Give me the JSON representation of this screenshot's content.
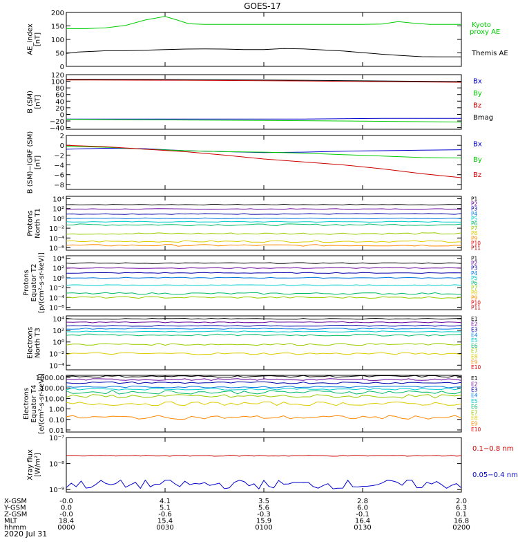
{
  "title": "GOES-17",
  "date": "2020 Jul 31",
  "colors": {
    "axis": "#000000",
    "green": "#00cc00",
    "black": "#000000",
    "blue": "#0000cc",
    "red": "#cc0000"
  },
  "ephemeris": {
    "labels": [
      "X-GSM",
      "Y-GSM",
      "Z-GSM",
      "MLT",
      "hhmm"
    ],
    "columns": [
      [
        "-0.0",
        "0.0",
        "-0.0",
        "18.4",
        "0000"
      ],
      [
        "4.1",
        "5.1",
        "-0.6",
        "15.4",
        "0030"
      ],
      [
        "3.5",
        "5.6",
        "-0.3",
        "15.9",
        "0100"
      ],
      [
        "2.8",
        "6.0",
        "-0.1",
        "16.4",
        "0130"
      ],
      [
        "2.0",
        "6.3",
        "0.1",
        "16.8",
        "0200"
      ]
    ]
  },
  "chart_data": [
    {
      "type": "line",
      "ylabel": [
        "AE_index",
        "[nT]"
      ],
      "yticks": [
        "200",
        "150",
        "100",
        "50",
        "0"
      ],
      "ylim": [
        0,
        200
      ],
      "legend": [
        "Kyoto",
        "proxy AE",
        "Themis AE"
      ],
      "series": [
        {
          "name": "Kyoto proxy AE",
          "color": "green",
          "x": [
            0,
            0.05,
            0.1,
            0.15,
            0.2,
            0.25,
            0.28,
            0.31,
            0.35,
            0.45,
            0.6,
            0.75,
            0.8,
            0.84,
            0.88,
            0.92,
            1.0
          ],
          "values": [
            140,
            140,
            143,
            152,
            172,
            185,
            172,
            158,
            156,
            156,
            156,
            156,
            157,
            166,
            160,
            156,
            156
          ]
        },
        {
          "name": "Themis AE",
          "color": "black",
          "x": [
            0,
            0.03,
            0.07,
            0.1,
            0.15,
            0.2,
            0.25,
            0.3,
            0.35,
            0.4,
            0.45,
            0.5,
            0.55,
            0.6,
            0.65,
            0.7,
            0.75,
            0.8,
            0.85,
            0.9,
            0.95,
            1.0
          ],
          "values": [
            48,
            53,
            56,
            58,
            58,
            60,
            62,
            64,
            65,
            64,
            62,
            62,
            66,
            65,
            61,
            57,
            51,
            45,
            40,
            36,
            35,
            35
          ]
        }
      ]
    },
    {
      "type": "line",
      "ylabel": [
        "B (SM)",
        "[nT]"
      ],
      "yticks": [
        "120",
        "100",
        "80",
        "60",
        "40",
        "20",
        "0",
        "−20",
        "−40"
      ],
      "ylim": [
        -45,
        120
      ],
      "legend": [
        "Bx",
        "By",
        "Bz",
        "Bmag"
      ],
      "series": [
        {
          "name": "Bx",
          "color": "blue",
          "x": [
            0,
            0.3,
            0.6,
            0.8,
            1.0
          ],
          "values": [
            -14,
            -14,
            -14,
            -12,
            -12
          ]
        },
        {
          "name": "By",
          "color": "green",
          "x": [
            0,
            0.3,
            0.6,
            0.8,
            1.0
          ],
          "values": [
            -15,
            -17,
            -19,
            -21,
            -23
          ]
        },
        {
          "name": "Bz",
          "color": "red",
          "x": [
            0,
            0.3,
            0.6,
            0.8,
            1.0
          ],
          "values": [
            104,
            103,
            101,
            99,
            97
          ]
        },
        {
          "name": "Bmag",
          "color": "black",
          "x": [
            0,
            0.3,
            0.6,
            0.8,
            1.0
          ],
          "values": [
            106,
            105,
            103,
            101,
            99
          ]
        }
      ]
    },
    {
      "type": "line",
      "ylabel": [
        "B (SM)−IGRF (SM)",
        "[nT]"
      ],
      "yticks": [
        "2",
        "0",
        "−2",
        "−4",
        "−6",
        "−8"
      ],
      "ylim": [
        -9,
        2
      ],
      "legend": [
        "Bx",
        "By",
        "Bz"
      ],
      "series": [
        {
          "name": "Bx",
          "color": "blue",
          "x": [
            0,
            0.1,
            0.2,
            0.3,
            0.4,
            0.5,
            0.6,
            0.7,
            0.8,
            0.9,
            1.0
          ],
          "values": [
            -0.8,
            -0.6,
            -0.7,
            -1.1,
            -1.3,
            -1.5,
            -1.4,
            -1.2,
            -1.1,
            -1.0,
            -0.9
          ]
        },
        {
          "name": "By",
          "color": "green",
          "x": [
            0,
            0.1,
            0.2,
            0.3,
            0.4,
            0.5,
            0.6,
            0.7,
            0.8,
            0.9,
            1.0
          ],
          "values": [
            -0.2,
            -0.4,
            -0.8,
            -1.1,
            -1.3,
            -1.4,
            -1.6,
            -1.9,
            -2.2,
            -2.5,
            -2.6
          ]
        },
        {
          "name": "Bz",
          "color": "red",
          "x": [
            0,
            0.1,
            0.2,
            0.3,
            0.4,
            0.5,
            0.6,
            0.7,
            0.8,
            0.9,
            1.0
          ],
          "values": [
            0.0,
            -0.3,
            -0.8,
            -1.3,
            -2.0,
            -2.8,
            -3.4,
            -4.0,
            -4.8,
            -5.8,
            -6.6
          ]
        }
      ]
    },
    {
      "type": "line",
      "scale": "log",
      "ylabel": [
        "Protons",
        "North T1"
      ],
      "yticks": [
        "10⁴",
        "10²",
        "10⁰",
        "10⁻²",
        "10⁻⁴",
        "10⁻⁶"
      ],
      "ylim": [
        -6.5,
        4.5
      ],
      "legend": [
        "P1",
        "P2",
        "P3",
        "P4",
        "P5",
        "P6",
        "P7",
        "P8",
        "P9",
        "P10",
        "P11"
      ],
      "channels": [
        2.8,
        1.9,
        0.9,
        0.0,
        -0.7,
        -1.3,
        -3.1,
        -4.7,
        -5.5
      ]
    },
    {
      "type": "line",
      "scale": "log",
      "ylabel": [
        "Protons",
        "Equator T2",
        "[p/(cm²-s-sr-keV)]"
      ],
      "yticks": [
        "10⁴",
        "10²",
        "10⁰",
        "10⁻²",
        "10⁻⁴",
        "10⁻⁶"
      ],
      "ylim": [
        -6.5,
        4.5
      ],
      "legend": [
        "P1",
        "P2",
        "P3",
        "P4",
        "P5",
        "P6",
        "P7",
        "P8",
        "P9",
        "P10",
        "P11"
      ],
      "channels": [
        3.0,
        2.0,
        1.0,
        0.0,
        -1.5,
        -3.2,
        -4.0
      ]
    },
    {
      "type": "line",
      "scale": "log",
      "ylabel": [
        "Electrons",
        "North T3"
      ],
      "yticks": [
        "10⁴",
        "10²",
        "10⁰",
        "10⁻²",
        "10⁻⁴"
      ],
      "ylim": [
        -4.8,
        4.5
      ],
      "legend": [
        "E1",
        "E2",
        "E3",
        "E4",
        "E5",
        "E6",
        "E7",
        "E8",
        "E9",
        "E10"
      ],
      "channels": [
        4.0,
        3.4,
        2.8,
        2.3,
        1.8,
        1.2,
        -0.4,
        -2.0
      ]
    },
    {
      "type": "line",
      "scale": "log",
      "ylabel": [
        "Electrons",
        "Equator T4",
        "[e/(cm²-s-sr-keV)]"
      ],
      "yticks": [
        "1000.00",
        "100.00",
        "10.00",
        "1.00",
        "0.10",
        "0.01"
      ],
      "ylim": [
        -2.2,
        3.2
      ],
      "legend": [
        "E1",
        "E2",
        "E3",
        "E4",
        "E5",
        "E6",
        "E7",
        "E8",
        "E9",
        "E10"
      ],
      "channels": [
        3.1,
        2.8,
        2.5,
        2.1,
        1.9,
        1.6,
        1.2,
        0.5,
        -0.8
      ]
    },
    {
      "type": "line",
      "scale": "log",
      "ylabel": [
        "Xray flux",
        "[W/m²]"
      ],
      "yticks": [
        "10⁻⁷",
        "10⁻⁸",
        "10⁻⁹"
      ],
      "ylim": [
        -9.1,
        -7.0
      ],
      "legend": [
        "0.1−0.8 nm",
        "0.05−0.4 nm"
      ],
      "series": [
        {
          "name": "0.1−0.8 nm",
          "color": "red",
          "x": [
            0,
            1.0
          ],
          "values": [
            -7.7,
            -7.7
          ]
        },
        {
          "name": "0.05−0.4 nm",
          "color": "blue",
          "x": [
            0,
            1.0
          ],
          "values": [
            -8.8,
            -8.8
          ]
        }
      ]
    }
  ]
}
